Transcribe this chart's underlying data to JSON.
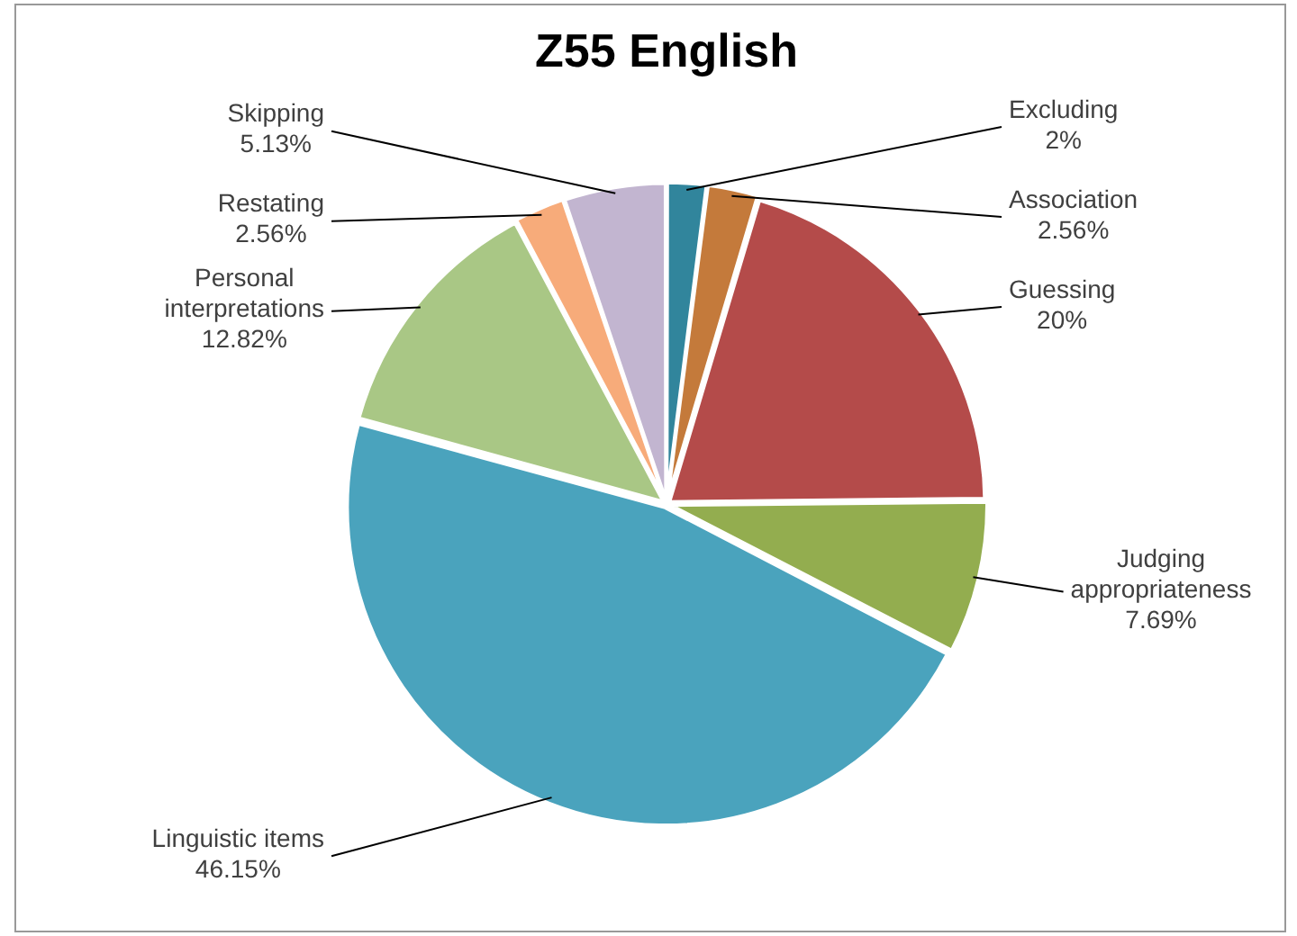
{
  "chart_data": {
    "type": "pie",
    "title": "Z55 English",
    "categories": [
      "Excluding",
      "Association",
      "Guessing",
      "Judging appropriateness",
      "Linguistic items",
      "Personal interpretations",
      "Restating",
      "Skipping"
    ],
    "values": [
      2,
      2.56,
      20,
      7.69,
      46.15,
      12.82,
      2.56,
      5.13
    ],
    "colors": [
      "#31859c",
      "#c47a3b",
      "#b44b4a",
      "#93ad4f",
      "#4aa3bd",
      "#a9c785",
      "#f7ab7a",
      "#c2b5d0"
    ],
    "value_labels": [
      "2%",
      "2.56%",
      "20%",
      "7.69%",
      "46.15%",
      "12.82%",
      "2.56%",
      "5.13%"
    ],
    "legend": false
  }
}
